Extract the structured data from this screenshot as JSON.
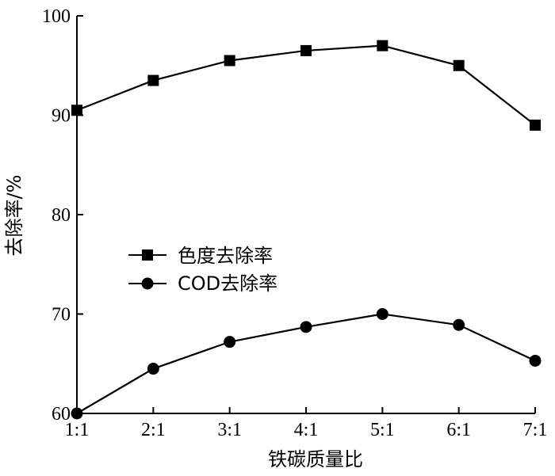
{
  "chart_data": {
    "type": "line",
    "title": "",
    "xlabel": "铁碳质量比",
    "ylabel": "去除率/%",
    "categories": [
      "1:1",
      "2:1",
      "3:1",
      "4:1",
      "5:1",
      "6:1",
      "7:1"
    ],
    "ylim": [
      60,
      100
    ],
    "yticks": [
      60,
      70,
      80,
      90,
      100
    ],
    "grid": false,
    "legend_position": "center-left",
    "series": [
      {
        "name": "色度去除率",
        "marker": "square",
        "color": "#000000",
        "values": [
          90.5,
          93.5,
          95.5,
          96.5,
          97.0,
          95.0,
          89.0
        ]
      },
      {
        "name": "COD去除率",
        "marker": "circle",
        "color": "#000000",
        "values": [
          60.0,
          64.5,
          67.2,
          68.7,
          70.0,
          68.9,
          65.3
        ]
      }
    ]
  }
}
